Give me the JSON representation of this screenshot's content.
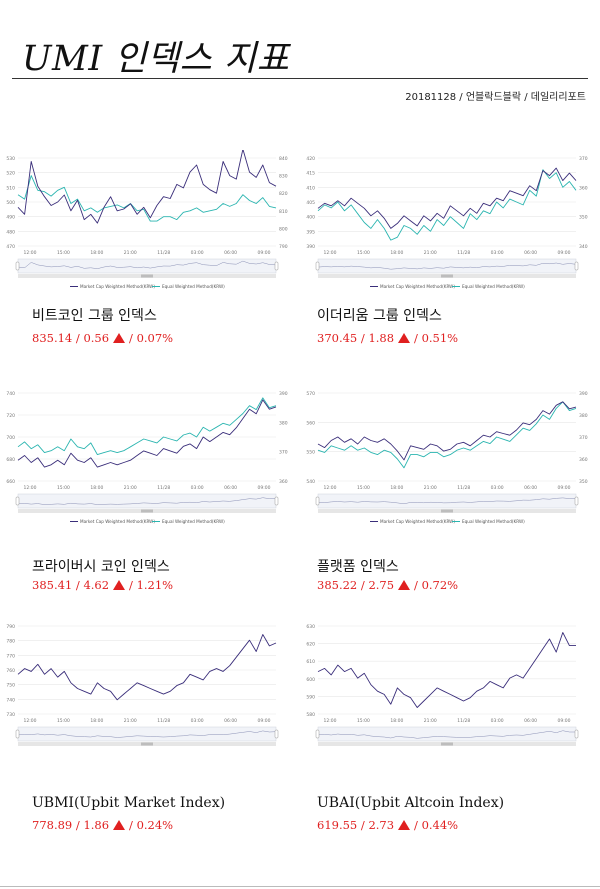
{
  "header": {
    "title": "UMI 인덱스 지표",
    "byline": "20181128 / 언블락드블락 / 데일리리포트"
  },
  "colors": {
    "market_cap": "#3a2e7a",
    "equal_weighted": "#2bb5b0",
    "up": "#e02020"
  },
  "indices": [
    {
      "id": "btc",
      "name": "비트코인 그룹 인덱스",
      "value": "835.14",
      "change": "0.56",
      "percent": "0.07%"
    },
    {
      "id": "eth",
      "name": "이더리움 그룹 인덱스",
      "value": "370.45",
      "change": "1.88",
      "percent": "0.51%"
    },
    {
      "id": "privacy",
      "name": "프라이버시 코인 인덱스",
      "value": "385.41",
      "change": "4.62",
      "percent": "1.21%"
    },
    {
      "id": "platform",
      "name": "플랫폼 인덱스",
      "value": "385.22",
      "change": "2.75",
      "percent": "0.72%"
    },
    {
      "id": "ubmi",
      "name": "UBMI(Upbit Market Index)",
      "value": "778.89",
      "change": "1.86",
      "percent": "0.24%"
    },
    {
      "id": "ubai",
      "name": "UBAI(Upbit Altcoin Index)",
      "value": "619.55",
      "change": "2.73",
      "percent": "0.44%"
    }
  ],
  "chart_data": [
    {
      "type": "line",
      "x_ticks": [
        "12:00",
        "15:00",
        "18:00",
        "21:00",
        "11/28",
        "03:00",
        "06:00",
        "09:00"
      ],
      "y_ticks_left": [
        "530",
        "520",
        "510",
        "500",
        "490",
        "480",
        "470"
      ],
      "y_ticks_right": [
        "840",
        "830",
        "820",
        "810",
        "800",
        "790"
      ],
      "ylim_left": [
        470,
        530
      ],
      "ylim_right": [
        790,
        840
      ],
      "legend": [
        "Market Cap Weighted Method(KRW)",
        "Equal Weighted Method(KRW)"
      ],
      "legend_position": "bottom",
      "series": [
        {
          "name": "Market Cap Weighted Method(KRW)",
          "axis": "right",
          "values": [
            812,
            808,
            838,
            824,
            818,
            813,
            815,
            819,
            810,
            816,
            805,
            808,
            803,
            812,
            818,
            810,
            811,
            814,
            808,
            812,
            806,
            813,
            818,
            817,
            825,
            823,
            832,
            836,
            825,
            822,
            820,
            838,
            830,
            828,
            845,
            832,
            829,
            836,
            826,
            824
          ]
        },
        {
          "name": "Equal Weighted Method(KRW)",
          "axis": "left",
          "values": [
            505,
            502,
            518,
            508,
            507,
            504,
            508,
            510,
            499,
            502,
            494,
            496,
            493,
            496,
            497,
            498,
            496,
            499,
            494,
            495,
            487,
            487,
            490,
            490,
            488,
            493,
            494,
            496,
            493,
            494,
            495,
            499,
            497,
            499,
            505,
            501,
            499,
            503,
            497,
            496
          ]
        }
      ]
    },
    {
      "type": "line",
      "x_ticks": [
        "12:00",
        "15:00",
        "18:00",
        "21:00",
        "11/28",
        "03:00",
        "06:00",
        "09:00"
      ],
      "y_ticks_left": [
        "420",
        "415",
        "410",
        "405",
        "400",
        "395",
        "390"
      ],
      "y_ticks_right": [
        "370",
        "360",
        "350",
        "340"
      ],
      "ylim_left": [
        390,
        420
      ],
      "ylim_right": [
        340,
        375
      ],
      "legend": [
        "Market Cap Weighted Method(KRW)",
        "Equal Weighted Method(KRW)"
      ],
      "legend_position": "bottom",
      "series": [
        {
          "name": "Market Cap Weighted Method(KRW)",
          "axis": "right",
          "values": [
            355,
            357,
            356,
            358,
            356,
            359,
            357,
            355,
            352,
            354,
            351,
            347,
            349,
            352,
            350,
            348,
            352,
            350,
            353,
            351,
            356,
            354,
            352,
            355,
            353,
            357,
            356,
            359,
            358,
            362,
            361,
            360,
            364,
            362,
            370,
            368,
            371,
            366,
            369,
            366
          ]
        },
        {
          "name": "Equal Weighted Method(KRW)",
          "axis": "left",
          "values": [
            402,
            404,
            403,
            405,
            402,
            404,
            401,
            398,
            396,
            399,
            396,
            392,
            393,
            397,
            396,
            394,
            397,
            395,
            399,
            397,
            400,
            398,
            396,
            401,
            399,
            402,
            401,
            405,
            403,
            406,
            405,
            404,
            409,
            407,
            416,
            413,
            415,
            410,
            412,
            409
          ]
        }
      ]
    },
    {
      "type": "line",
      "x_ticks": [
        "12:00",
        "15:00",
        "18:00",
        "21:00",
        "11/28",
        "03:00",
        "06:00",
        "09:00"
      ],
      "y_ticks_left": [
        "740",
        "720",
        "700",
        "680",
        "660"
      ],
      "y_ticks_right": [
        "390",
        "380",
        "370",
        "360"
      ],
      "ylim_left": [
        655,
        745
      ],
      "ylim_right": [
        355,
        393
      ],
      "legend": [
        "Market Cap Weighted Method(KRW)",
        "Equal Weighted Method(KRW)"
      ],
      "legend_position": "bottom",
      "series": [
        {
          "name": "Market Cap Weighted Method(KRW)",
          "axis": "right",
          "values": [
            364,
            366,
            363,
            365,
            361,
            362,
            364,
            362,
            367,
            364,
            363,
            365,
            361,
            362,
            363,
            362,
            363,
            364,
            366,
            368,
            367,
            366,
            369,
            368,
            367,
            370,
            371,
            369,
            374,
            372,
            374,
            376,
            375,
            378,
            382,
            386,
            384,
            390,
            386,
            387
          ]
        },
        {
          "name": "Equal Weighted Method(KRW)",
          "axis": "left",
          "values": [
            690,
            695,
            688,
            692,
            684,
            686,
            690,
            686,
            698,
            690,
            688,
            694,
            682,
            684,
            686,
            684,
            686,
            690,
            694,
            698,
            696,
            694,
            700,
            698,
            696,
            702,
            704,
            700,
            710,
            706,
            710,
            714,
            712,
            718,
            724,
            732,
            728,
            740,
            730,
            732
          ]
        }
      ]
    },
    {
      "type": "line",
      "x_ticks": [
        "12:00",
        "15:00",
        "18:00",
        "21:00",
        "11/28",
        "03:00",
        "06:00",
        "09:00"
      ],
      "y_ticks_left": [
        "570",
        "560",
        "550",
        "540"
      ],
      "y_ticks_right": [
        "390",
        "380",
        "370",
        "360",
        "350"
      ],
      "ylim_left": [
        535,
        575
      ],
      "ylim_right": [
        345,
        395
      ],
      "legend": [
        "Market Cap Weighted Method(KRW)",
        "Equal Weighted Method(KRW)"
      ],
      "legend_position": "bottom",
      "series": [
        {
          "name": "Market Cap Weighted Method(KRW)",
          "axis": "right",
          "values": [
            366,
            364,
            368,
            370,
            367,
            369,
            366,
            370,
            368,
            367,
            369,
            366,
            362,
            357,
            365,
            364,
            363,
            366,
            365,
            362,
            363,
            366,
            367,
            365,
            368,
            371,
            370,
            373,
            372,
            371,
            374,
            378,
            377,
            380,
            385,
            383,
            388,
            390,
            386,
            387
          ]
        },
        {
          "name": "Equal Weighted Method(KRW)",
          "axis": "left",
          "values": [
            549,
            548,
            551,
            550,
            549,
            551,
            549,
            550,
            548,
            547,
            549,
            548,
            545,
            541,
            547,
            547,
            546,
            548,
            548,
            546,
            547,
            549,
            550,
            549,
            551,
            553,
            552,
            555,
            554,
            553,
            556,
            559,
            558,
            561,
            565,
            563,
            568,
            571,
            567,
            568
          ]
        }
      ]
    },
    {
      "type": "line",
      "x_ticks": [
        "12:00",
        "15:00",
        "18:00",
        "21:00",
        "11/28",
        "03:00",
        "06:00",
        "09:00"
      ],
      "y_ticks_left": [
        "790",
        "780",
        "770",
        "760",
        "750",
        "740",
        "730"
      ],
      "ylim_left": [
        730,
        792
      ],
      "legend_position": "none",
      "series": [
        {
          "name": "UBMI",
          "axis": "left",
          "values": [
            758,
            762,
            760,
            765,
            758,
            762,
            756,
            760,
            752,
            748,
            746,
            744,
            752,
            748,
            746,
            740,
            744,
            748,
            752,
            750,
            748,
            746,
            744,
            746,
            750,
            752,
            758,
            756,
            754,
            760,
            762,
            760,
            764,
            770,
            776,
            782,
            774,
            786,
            778,
            780
          ]
        }
      ]
    },
    {
      "type": "line",
      "x_ticks": [
        "12:00",
        "15:00",
        "18:00",
        "21:00",
        "11/28",
        "03:00",
        "06:00",
        "09:00"
      ],
      "y_ticks_left": [
        "630",
        "620",
        "610",
        "600",
        "590",
        "580"
      ],
      "ylim_left": [
        578,
        632
      ],
      "legend_position": "none",
      "series": [
        {
          "name": "UBAI",
          "axis": "left",
          "values": [
            604,
            606,
            602,
            608,
            604,
            606,
            600,
            603,
            596,
            592,
            590,
            584,
            594,
            590,
            588,
            582,
            586,
            590,
            594,
            592,
            590,
            588,
            586,
            588,
            592,
            594,
            598,
            596,
            594,
            600,
            602,
            600,
            606,
            612,
            618,
            624,
            616,
            628,
            620,
            620
          ]
        }
      ]
    }
  ]
}
